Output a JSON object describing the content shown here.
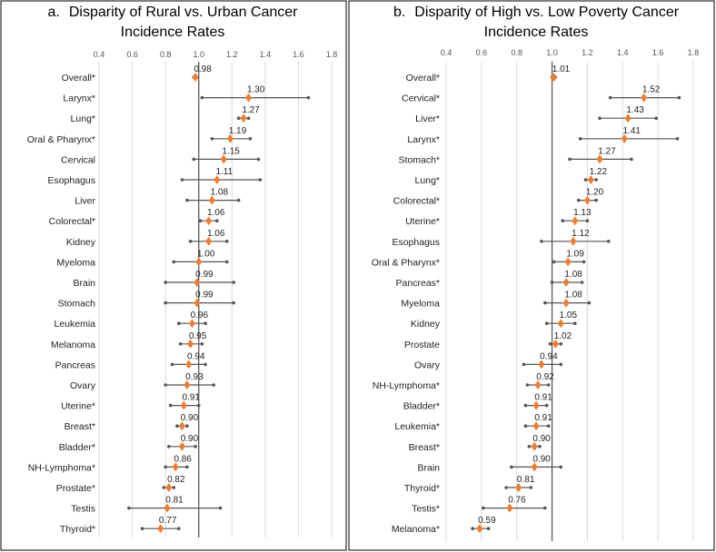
{
  "chart_data": [
    {
      "type": "forest",
      "panel": "a.",
      "title_line1": "Disparity of Rural vs. Urban Cancer",
      "title_line2": "Incidence Rates",
      "xlim": [
        0.4,
        1.8
      ],
      "xticks": [
        0.4,
        0.6,
        0.8,
        1.0,
        1.2,
        1.4,
        1.6,
        1.8
      ],
      "xtick_labels": [
        "0.4",
        "0.6",
        "0.8",
        "1.0",
        "1.2",
        "1.4",
        "1.6",
        "1.8"
      ],
      "reference_line": 1.0,
      "colors": {
        "marker": "#ed7d31",
        "whisker": "#555555",
        "grid": "#d9d9d9",
        "ref": "#595959"
      },
      "rows": [
        {
          "category": "Overall*",
          "value": 0.98,
          "label": "0.98",
          "lower": 0.97,
          "upper": 0.99
        },
        {
          "category": "Larynx*",
          "value": 1.3,
          "label": "1.30",
          "lower": 1.02,
          "upper": 1.66
        },
        {
          "category": "Lung*",
          "value": 1.27,
          "label": "1.27",
          "lower": 1.24,
          "upper": 1.3
        },
        {
          "category": "Oral & Pharynx*",
          "value": 1.19,
          "label": "1.19",
          "lower": 1.08,
          "upper": 1.31
        },
        {
          "category": "Cervical",
          "value": 1.15,
          "label": "1.15",
          "lower": 0.97,
          "upper": 1.36
        },
        {
          "category": "Esophagus",
          "value": 1.11,
          "label": "1.11",
          "lower": 0.9,
          "upper": 1.37
        },
        {
          "category": "Liver",
          "value": 1.08,
          "label": "1.08",
          "lower": 0.93,
          "upper": 1.24
        },
        {
          "category": "Colorectal*",
          "value": 1.06,
          "label": "1.06",
          "lower": 1.01,
          "upper": 1.11
        },
        {
          "category": "Kidney",
          "value": 1.06,
          "label": "1.06",
          "lower": 0.95,
          "upper": 1.17
        },
        {
          "category": "Myeloma",
          "value": 1.0,
          "label": "1.00",
          "lower": 0.85,
          "upper": 1.17
        },
        {
          "category": "Brain",
          "value": 0.99,
          "label": "0.99",
          "lower": 0.8,
          "upper": 1.21
        },
        {
          "category": "Stomach",
          "value": 0.99,
          "label": "0.99",
          "lower": 0.8,
          "upper": 1.21
        },
        {
          "category": "Leukemia",
          "value": 0.96,
          "label": "0.96",
          "lower": 0.88,
          "upper": 1.04
        },
        {
          "category": "Melanoma",
          "value": 0.95,
          "label": "0.95",
          "lower": 0.89,
          "upper": 1.02
        },
        {
          "category": "Pancreas",
          "value": 0.94,
          "label": "0.94",
          "lower": 0.84,
          "upper": 1.04
        },
        {
          "category": "Ovary",
          "value": 0.93,
          "label": "0.93",
          "lower": 0.8,
          "upper": 1.09
        },
        {
          "category": "Uterine*",
          "value": 0.91,
          "label": "0.91",
          "lower": 0.83,
          "upper": 1.0
        },
        {
          "category": "Breast*",
          "value": 0.9,
          "label": "0.90",
          "lower": 0.87,
          "upper": 0.93
        },
        {
          "category": "Bladder*",
          "value": 0.9,
          "label": "0.90",
          "lower": 0.82,
          "upper": 0.98
        },
        {
          "category": "NH-Lymphoma*",
          "value": 0.86,
          "label": "0.86",
          "lower": 0.8,
          "upper": 0.93
        },
        {
          "category": "Prostate*",
          "value": 0.82,
          "label": "0.82",
          "lower": 0.79,
          "upper": 0.85
        },
        {
          "category": "Testis",
          "value": 0.81,
          "label": "0.81",
          "lower": 0.58,
          "upper": 1.13
        },
        {
          "category": "Thyroid*",
          "value": 0.77,
          "label": "0.77",
          "lower": 0.66,
          "upper": 0.88
        }
      ]
    },
    {
      "type": "forest",
      "panel": "b.",
      "title_line1": "Disparity of High vs. Low Poverty Cancer",
      "title_line2": "Incidence Rates",
      "xlim": [
        0.4,
        1.8
      ],
      "xticks": [
        0.4,
        0.6,
        0.8,
        1.0,
        1.2,
        1.4,
        1.6,
        1.8
      ],
      "xtick_labels": [
        "0.4",
        "0.6",
        "0.8",
        "1.0",
        "1.2",
        "1.4",
        "1.6",
        "1.8"
      ],
      "reference_line": 1.0,
      "colors": {
        "marker": "#ed7d31",
        "whisker": "#555555",
        "grid": "#d9d9d9",
        "ref": "#595959"
      },
      "rows": [
        {
          "category": "Overall*",
          "value": 1.01,
          "label": "1.01",
          "lower": 1.0,
          "upper": 1.02
        },
        {
          "category": "Cervical*",
          "value": 1.52,
          "label": "1.52",
          "lower": 1.33,
          "upper": 1.72
        },
        {
          "category": "Liver*",
          "value": 1.43,
          "label": "1.43",
          "lower": 1.27,
          "upper": 1.59
        },
        {
          "category": "Larynx*",
          "value": 1.41,
          "label": "1.41",
          "lower": 1.16,
          "upper": 1.71
        },
        {
          "category": "Stomach*",
          "value": 1.27,
          "label": "1.27",
          "lower": 1.1,
          "upper": 1.45
        },
        {
          "category": "Lung*",
          "value": 1.22,
          "label": "1.22",
          "lower": 1.19,
          "upper": 1.25
        },
        {
          "category": "Colorectal*",
          "value": 1.2,
          "label": "1.20",
          "lower": 1.15,
          "upper": 1.25
        },
        {
          "category": "Uterine*",
          "value": 1.13,
          "label": "1.13",
          "lower": 1.06,
          "upper": 1.2
        },
        {
          "category": "Esophagus",
          "value": 1.12,
          "label": "1.12",
          "lower": 0.94,
          "upper": 1.32
        },
        {
          "category": "Oral & Pharynx*",
          "value": 1.09,
          "label": "1.09",
          "lower": 1.01,
          "upper": 1.18
        },
        {
          "category": "Pancreas*",
          "value": 1.08,
          "label": "1.08",
          "lower": 1.0,
          "upper": 1.17
        },
        {
          "category": "Myeloma",
          "value": 1.08,
          "label": "1.08",
          "lower": 0.96,
          "upper": 1.21
        },
        {
          "category": "Kidney",
          "value": 1.05,
          "label": "1.05",
          "lower": 0.97,
          "upper": 1.13
        },
        {
          "category": "Prostate",
          "value": 1.02,
          "label": "1.02",
          "lower": 0.99,
          "upper": 1.05
        },
        {
          "category": "Ovary",
          "value": 0.94,
          "label": "0.94",
          "lower": 0.84,
          "upper": 1.05
        },
        {
          "category": "NH-Lymphoma*",
          "value": 0.92,
          "label": "0.92",
          "lower": 0.86,
          "upper": 0.98
        },
        {
          "category": "Bladder*",
          "value": 0.91,
          "label": "0.91",
          "lower": 0.85,
          "upper": 0.97
        },
        {
          "category": "Leukemia*",
          "value": 0.91,
          "label": "0.91",
          "lower": 0.85,
          "upper": 0.98
        },
        {
          "category": "Breast*",
          "value": 0.9,
          "label": "0.90",
          "lower": 0.87,
          "upper": 0.93
        },
        {
          "category": "Brain",
          "value": 0.9,
          "label": "0.90",
          "lower": 0.77,
          "upper": 1.05
        },
        {
          "category": "Thyroid*",
          "value": 0.81,
          "label": "0.81",
          "lower": 0.74,
          "upper": 0.88
        },
        {
          "category": "Testis*",
          "value": 0.76,
          "label": "0.76",
          "lower": 0.61,
          "upper": 0.96
        },
        {
          "category": "Melanoma*",
          "value": 0.59,
          "label": "0.59",
          "lower": 0.55,
          "upper": 0.64
        }
      ]
    }
  ]
}
